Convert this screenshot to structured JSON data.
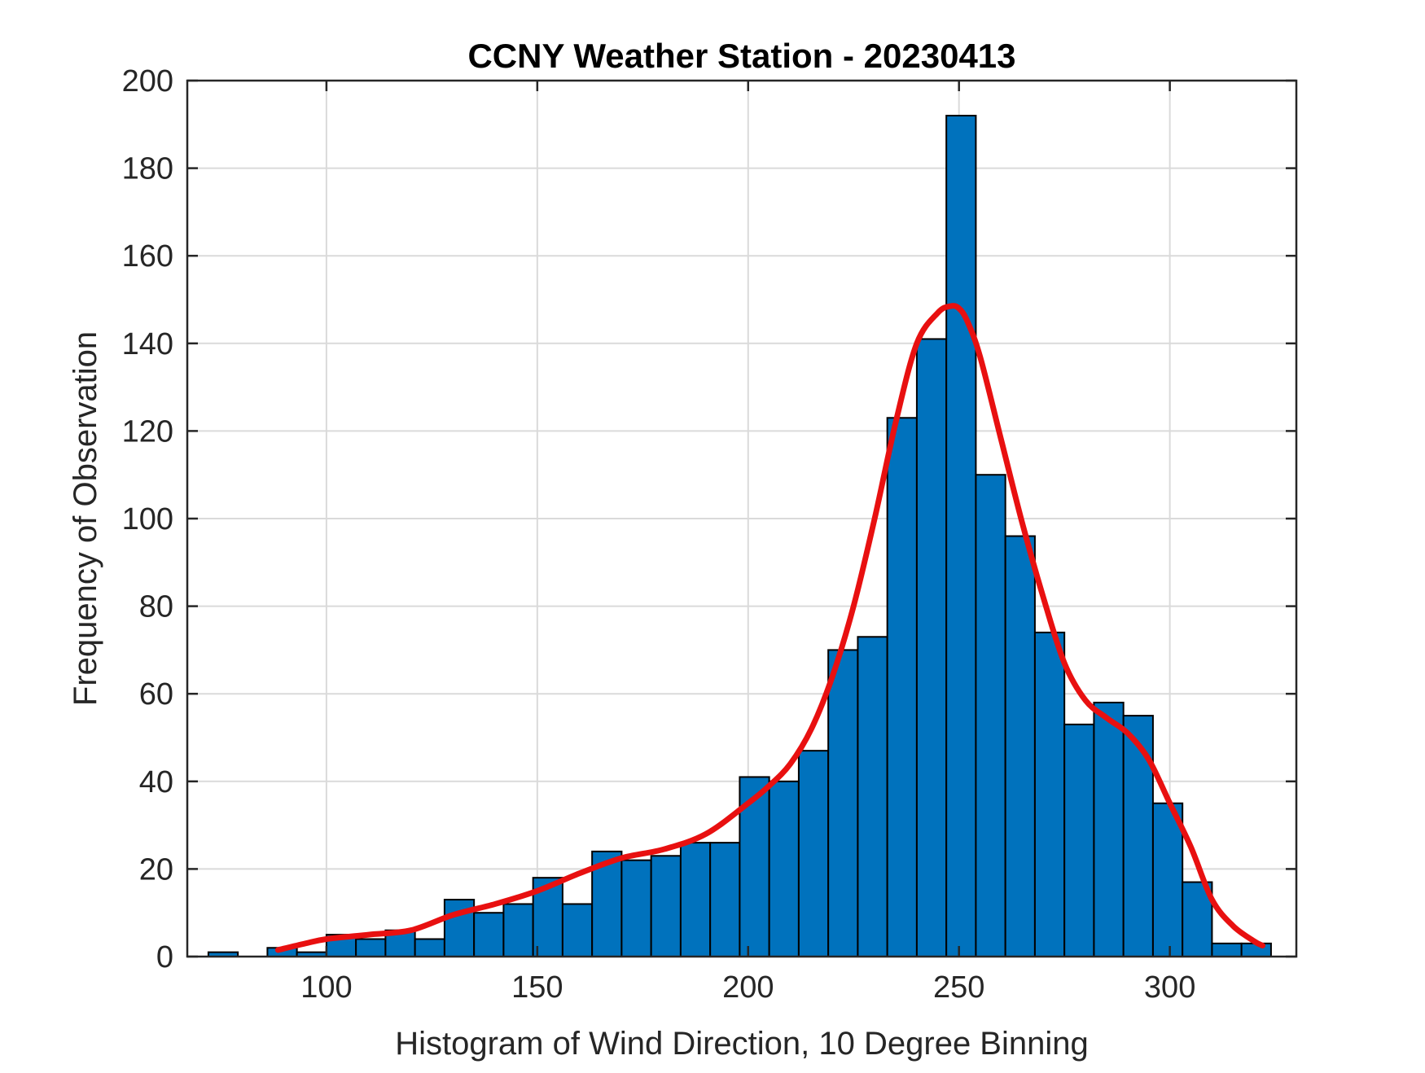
{
  "chart_data": {
    "type": "bar",
    "title": "CCNY Weather Station - 20230413",
    "xlabel": "Histogram of Wind Direction, 10 Degree Binning",
    "ylabel": "Frequency of Observation",
    "xlim": [
      67,
      330
    ],
    "ylim": [
      0,
      200
    ],
    "xticks": [
      100,
      150,
      200,
      250,
      300
    ],
    "yticks": [
      0,
      20,
      40,
      60,
      80,
      100,
      120,
      140,
      160,
      180,
      200
    ],
    "grid": true,
    "bin_width": 7,
    "bins": [
      {
        "left": 72,
        "value": 1
      },
      {
        "left": 86,
        "value": 2
      },
      {
        "left": 93,
        "value": 1
      },
      {
        "left": 100,
        "value": 5
      },
      {
        "left": 107,
        "value": 4
      },
      {
        "left": 114,
        "value": 6
      },
      {
        "left": 121,
        "value": 4
      },
      {
        "left": 128,
        "value": 13
      },
      {
        "left": 135,
        "value": 10
      },
      {
        "left": 142,
        "value": 12
      },
      {
        "left": 149,
        "value": 18
      },
      {
        "left": 156,
        "value": 12
      },
      {
        "left": 163,
        "value": 24
      },
      {
        "left": 170,
        "value": 22
      },
      {
        "left": 177,
        "value": 23
      },
      {
        "left": 184,
        "value": 26
      },
      {
        "left": 191,
        "value": 26
      },
      {
        "left": 198,
        "value": 41
      },
      {
        "left": 205,
        "value": 40
      },
      {
        "left": 212,
        "value": 47
      },
      {
        "left": 219,
        "value": 70
      },
      {
        "left": 226,
        "value": 73
      },
      {
        "left": 233,
        "value": 123
      },
      {
        "left": 240,
        "value": 141
      },
      {
        "left": 247,
        "value": 192
      },
      {
        "left": 254,
        "value": 110
      },
      {
        "left": 261,
        "value": 96
      },
      {
        "left": 268,
        "value": 74
      },
      {
        "left": 275,
        "value": 53
      },
      {
        "left": 282,
        "value": 58
      },
      {
        "left": 289,
        "value": 55
      },
      {
        "left": 296,
        "value": 35
      },
      {
        "left": 303,
        "value": 17
      },
      {
        "left": 310,
        "value": 3
      },
      {
        "left": 317,
        "value": 3
      }
    ],
    "fit_curve": {
      "x": [
        88.5,
        95,
        100,
        110,
        120,
        130,
        140,
        150,
        160,
        170,
        180,
        190,
        200,
        205,
        210,
        215,
        220,
        225,
        230,
        235,
        240,
        245,
        248,
        250,
        252,
        255,
        260,
        265,
        270,
        275,
        280,
        285,
        290,
        295,
        300,
        305,
        310,
        315,
        320,
        322
      ],
      "y": [
        1.5,
        3,
        4,
        5,
        6,
        9.5,
        12,
        15,
        19,
        22.5,
        24.5,
        28,
        35,
        39,
        44,
        52,
        64,
        80,
        100,
        122,
        140,
        147,
        148.5,
        148,
        145,
        137,
        118,
        99,
        82,
        67,
        58.5,
        54.5,
        51,
        45,
        35,
        25,
        13,
        7,
        3.5,
        2.5
      ]
    },
    "colors": {
      "bar_fill": "#0072BD",
      "bar_edge": "#000000",
      "curve": "#E81010",
      "grid": "#DADADA",
      "axes": "#262626"
    }
  }
}
